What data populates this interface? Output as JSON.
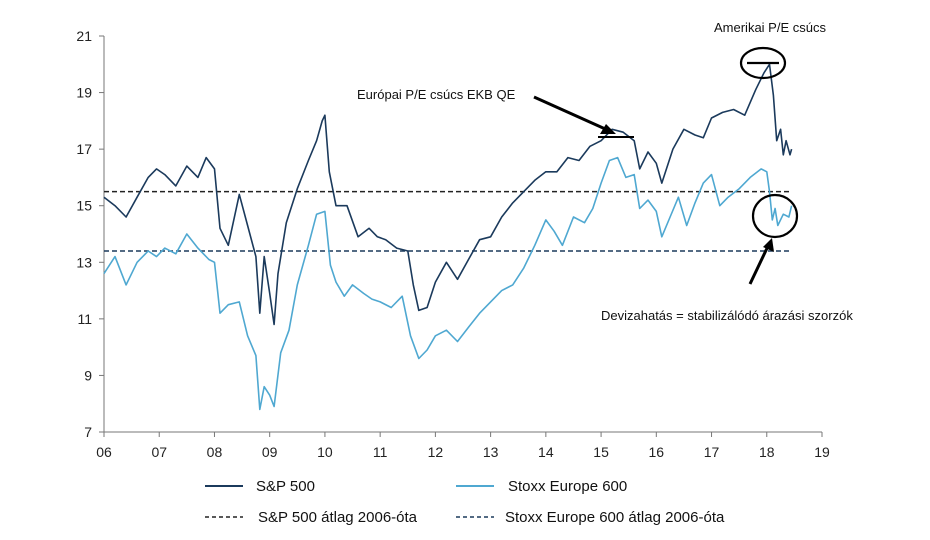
{
  "chart_data": {
    "type": "line",
    "title": "",
    "xlabel": "",
    "ylabel": "",
    "x_ticks": [
      "06",
      "07",
      "08",
      "09",
      "10",
      "11",
      "12",
      "13",
      "14",
      "15",
      "16",
      "17",
      "18",
      "19"
    ],
    "y_ticks": [
      7,
      9,
      11,
      13,
      15,
      17,
      19,
      21
    ],
    "xlim": [
      2006,
      2019
    ],
    "ylim": [
      7,
      21
    ],
    "grid": false,
    "legend_placement": "bottom",
    "series": [
      {
        "name": "S&P 500",
        "color": "#1b3a5c",
        "style": "solid",
        "points": [
          [
            2006.0,
            15.3
          ],
          [
            2006.2,
            15.0
          ],
          [
            2006.4,
            14.6
          ],
          [
            2006.6,
            15.3
          ],
          [
            2006.8,
            16.0
          ],
          [
            2006.95,
            16.3
          ],
          [
            2007.1,
            16.1
          ],
          [
            2007.3,
            15.7
          ],
          [
            2007.5,
            16.4
          ],
          [
            2007.7,
            16.0
          ],
          [
            2007.85,
            16.7
          ],
          [
            2008.0,
            16.3
          ],
          [
            2008.1,
            14.2
          ],
          [
            2008.25,
            13.6
          ],
          [
            2008.45,
            15.4
          ],
          [
            2008.6,
            14.3
          ],
          [
            2008.75,
            13.2
          ],
          [
            2008.82,
            11.2
          ],
          [
            2008.9,
            13.2
          ],
          [
            2009.0,
            11.9
          ],
          [
            2009.08,
            10.8
          ],
          [
            2009.15,
            12.6
          ],
          [
            2009.3,
            14.4
          ],
          [
            2009.5,
            15.6
          ],
          [
            2009.7,
            16.6
          ],
          [
            2009.85,
            17.3
          ],
          [
            2009.95,
            18.0
          ],
          [
            2010.0,
            18.2
          ],
          [
            2010.08,
            16.2
          ],
          [
            2010.2,
            15.0
          ],
          [
            2010.4,
            15.0
          ],
          [
            2010.6,
            13.9
          ],
          [
            2010.8,
            14.2
          ],
          [
            2010.95,
            13.9
          ],
          [
            2011.1,
            13.8
          ],
          [
            2011.3,
            13.5
          ],
          [
            2011.5,
            13.4
          ],
          [
            2011.6,
            12.2
          ],
          [
            2011.7,
            11.3
          ],
          [
            2011.85,
            11.4
          ],
          [
            2012.0,
            12.3
          ],
          [
            2012.2,
            13.0
          ],
          [
            2012.4,
            12.4
          ],
          [
            2012.6,
            13.1
          ],
          [
            2012.8,
            13.8
          ],
          [
            2013.0,
            13.9
          ],
          [
            2013.2,
            14.6
          ],
          [
            2013.4,
            15.1
          ],
          [
            2013.6,
            15.5
          ],
          [
            2013.8,
            15.9
          ],
          [
            2014.0,
            16.2
          ],
          [
            2014.2,
            16.2
          ],
          [
            2014.4,
            16.7
          ],
          [
            2014.6,
            16.6
          ],
          [
            2014.8,
            17.1
          ],
          [
            2015.0,
            17.3
          ],
          [
            2015.2,
            17.7
          ],
          [
            2015.4,
            17.6
          ],
          [
            2015.6,
            17.3
          ],
          [
            2015.7,
            16.3
          ],
          [
            2015.85,
            16.9
          ],
          [
            2016.0,
            16.5
          ],
          [
            2016.1,
            15.8
          ],
          [
            2016.3,
            17.0
          ],
          [
            2016.5,
            17.7
          ],
          [
            2016.7,
            17.5
          ],
          [
            2016.85,
            17.4
          ],
          [
            2017.0,
            18.1
          ],
          [
            2017.2,
            18.3
          ],
          [
            2017.4,
            18.4
          ],
          [
            2017.6,
            18.2
          ],
          [
            2017.8,
            19.1
          ],
          [
            2017.95,
            19.7
          ],
          [
            2018.05,
            20.0
          ],
          [
            2018.12,
            18.9
          ],
          [
            2018.18,
            17.3
          ],
          [
            2018.25,
            17.7
          ],
          [
            2018.3,
            16.8
          ],
          [
            2018.35,
            17.3
          ],
          [
            2018.42,
            16.8
          ],
          [
            2018.45,
            17.0
          ]
        ]
      },
      {
        "name": "Stoxx Europe 600",
        "color": "#4fa8d1",
        "style": "solid",
        "points": [
          [
            2006.0,
            12.6
          ],
          [
            2006.2,
            13.2
          ],
          [
            2006.4,
            12.2
          ],
          [
            2006.6,
            13.0
          ],
          [
            2006.8,
            13.4
          ],
          [
            2006.95,
            13.2
          ],
          [
            2007.1,
            13.5
          ],
          [
            2007.3,
            13.3
          ],
          [
            2007.5,
            14.0
          ],
          [
            2007.7,
            13.5
          ],
          [
            2007.9,
            13.1
          ],
          [
            2008.0,
            13.0
          ],
          [
            2008.1,
            11.2
          ],
          [
            2008.25,
            11.5
          ],
          [
            2008.45,
            11.6
          ],
          [
            2008.6,
            10.4
          ],
          [
            2008.75,
            9.7
          ],
          [
            2008.82,
            7.8
          ],
          [
            2008.9,
            8.6
          ],
          [
            2009.0,
            8.3
          ],
          [
            2009.08,
            7.9
          ],
          [
            2009.2,
            9.8
          ],
          [
            2009.35,
            10.6
          ],
          [
            2009.5,
            12.2
          ],
          [
            2009.7,
            13.6
          ],
          [
            2009.85,
            14.7
          ],
          [
            2010.0,
            14.8
          ],
          [
            2010.1,
            12.9
          ],
          [
            2010.2,
            12.3
          ],
          [
            2010.35,
            11.8
          ],
          [
            2010.5,
            12.2
          ],
          [
            2010.7,
            11.9
          ],
          [
            2010.85,
            11.7
          ],
          [
            2011.0,
            11.6
          ],
          [
            2011.2,
            11.4
          ],
          [
            2011.4,
            11.8
          ],
          [
            2011.55,
            10.4
          ],
          [
            2011.7,
            9.6
          ],
          [
            2011.85,
            9.9
          ],
          [
            2012.0,
            10.4
          ],
          [
            2012.2,
            10.6
          ],
          [
            2012.4,
            10.2
          ],
          [
            2012.6,
            10.7
          ],
          [
            2012.8,
            11.2
          ],
          [
            2013.0,
            11.6
          ],
          [
            2013.2,
            12.0
          ],
          [
            2013.4,
            12.2
          ],
          [
            2013.6,
            12.8
          ],
          [
            2013.8,
            13.6
          ],
          [
            2014.0,
            14.5
          ],
          [
            2014.15,
            14.1
          ],
          [
            2014.3,
            13.6
          ],
          [
            2014.5,
            14.6
          ],
          [
            2014.7,
            14.4
          ],
          [
            2014.85,
            14.9
          ],
          [
            2015.0,
            15.8
          ],
          [
            2015.15,
            16.6
          ],
          [
            2015.3,
            16.7
          ],
          [
            2015.45,
            16.0
          ],
          [
            2015.6,
            16.1
          ],
          [
            2015.7,
            14.9
          ],
          [
            2015.85,
            15.2
          ],
          [
            2016.0,
            14.8
          ],
          [
            2016.1,
            13.9
          ],
          [
            2016.25,
            14.6
          ],
          [
            2016.4,
            15.3
          ],
          [
            2016.55,
            14.3
          ],
          [
            2016.7,
            15.1
          ],
          [
            2016.85,
            15.8
          ],
          [
            2017.0,
            16.1
          ],
          [
            2017.15,
            15.0
          ],
          [
            2017.3,
            15.3
          ],
          [
            2017.5,
            15.6
          ],
          [
            2017.7,
            16.0
          ],
          [
            2017.9,
            16.3
          ],
          [
            2018.0,
            16.2
          ],
          [
            2018.05,
            15.5
          ],
          [
            2018.1,
            14.5
          ],
          [
            2018.15,
            14.9
          ],
          [
            2018.2,
            14.3
          ],
          [
            2018.3,
            14.7
          ],
          [
            2018.4,
            14.6
          ],
          [
            2018.45,
            15.0
          ]
        ]
      },
      {
        "name": "S&P 500 átlag 2006-óta",
        "color": "#222222",
        "style": "dashed",
        "points": [
          [
            2006.0,
            15.5
          ],
          [
            2018.45,
            15.5
          ]
        ]
      },
      {
        "name": "Stoxx Europe 600 átlag 2006-óta",
        "color": "#1b3a5c",
        "style": "dashed",
        "points": [
          [
            2006.0,
            13.4
          ],
          [
            2018.45,
            13.4
          ]
        ]
      }
    ],
    "annotations": [
      {
        "text": "Amerikai P/E csúcs",
        "target": [
          2018.0,
          20.1
        ]
      },
      {
        "text": "Európai P/E csúcs EKB QE",
        "target": [
          2015.15,
          17.5
        ]
      },
      {
        "text": "Devizahatás = stabilizálódó árazási szorzók",
        "target": [
          2018.2,
          14.6
        ]
      }
    ]
  }
}
